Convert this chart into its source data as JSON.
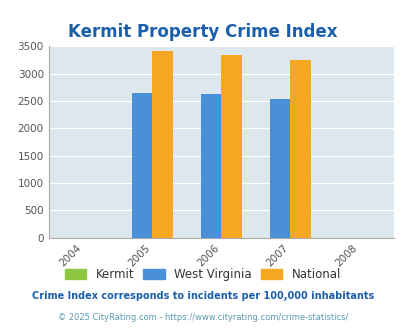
{
  "title": "Kermit Property Crime Index",
  "title_color": "#1b5faa",
  "years": [
    2004,
    2005,
    2006,
    2007,
    2008
  ],
  "bar_years": [
    2005,
    2006,
    2007
  ],
  "west_virginia": [
    2640,
    2620,
    2540
  ],
  "national": [
    3420,
    3330,
    3250
  ],
  "kermit_color": "#8dc63f",
  "wv_color": "#4a90d9",
  "national_color": "#f5a623",
  "bg_color": "#dce8ed",
  "ylim": [
    0,
    3500
  ],
  "yticks": [
    0,
    500,
    1000,
    1500,
    2000,
    2500,
    3000,
    3500
  ],
  "bar_width": 0.3,
  "legend_labels": [
    "Kermit",
    "West Virginia",
    "National"
  ],
  "footer1": "Crime Index corresponds to incidents per 100,000 inhabitants",
  "footer2": "© 2025 CityRating.com - https://www.cityrating.com/crime-statistics/",
  "footer1_color": "#1b5faa",
  "footer2_color": "#5b9ab5"
}
